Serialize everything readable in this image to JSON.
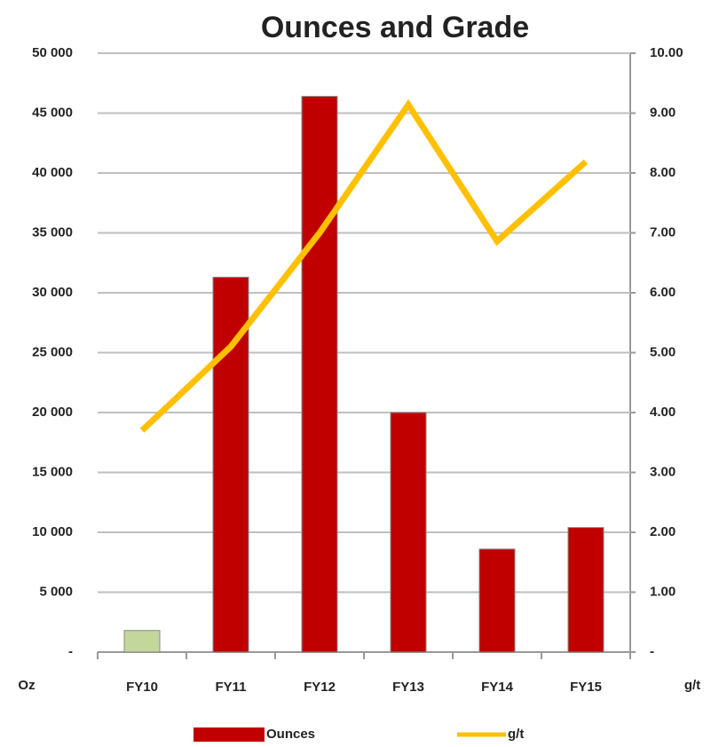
{
  "chart_data": {
    "type": "bar_line",
    "title": "Ounces and Grade",
    "y_label": "Oz",
    "y2_label": "g/t",
    "categories": [
      "FY10",
      "FY11",
      "FY12",
      "FY13",
      "FY14",
      "FY15"
    ],
    "series": [
      {
        "name": "Ounces",
        "type": "bar",
        "color": "#c00000",
        "point_colors": [
          "#c3d69b",
          "#c00000",
          "#c00000",
          "#c00000",
          "#c00000",
          "#c00000"
        ],
        "values": [
          1800,
          31300,
          46400,
          20000,
          8600,
          10400
        ]
      },
      {
        "name": "g/t",
        "type": "line",
        "axis": "y2",
        "color": "#ffc000",
        "values": [
          3.7,
          5.1,
          7.0,
          9.14,
          6.86,
          8.19
        ]
      }
    ],
    "ylim": [
      0,
      50000
    ],
    "yticks": [
      {
        "value": 0,
        "label": "-"
      },
      {
        "value": 5000,
        "label": "5 000"
      },
      {
        "value": 10000,
        "label": "10 000"
      },
      {
        "value": 15000,
        "label": "15 000"
      },
      {
        "value": 20000,
        "label": "20 000"
      },
      {
        "value": 25000,
        "label": "25 000"
      },
      {
        "value": 30000,
        "label": "30 000"
      },
      {
        "value": 35000,
        "label": "35 000"
      },
      {
        "value": 40000,
        "label": "40 000"
      },
      {
        "value": 45000,
        "label": "45 000"
      },
      {
        "value": 50000,
        "label": "50 000"
      }
    ],
    "y2lim": [
      0,
      10
    ],
    "y2ticks": [
      {
        "value": 0,
        "label": "-"
      },
      {
        "value": 1,
        "label": "1.00"
      },
      {
        "value": 2,
        "label": "2.00"
      },
      {
        "value": 3,
        "label": "3.00"
      },
      {
        "value": 4,
        "label": "4.00"
      },
      {
        "value": 5,
        "label": "5.00"
      },
      {
        "value": 6,
        "label": "6.00"
      },
      {
        "value": 7,
        "label": "7.00"
      },
      {
        "value": 8,
        "label": "8.00"
      },
      {
        "value": 9,
        "label": "9.00"
      },
      {
        "value": 10,
        "label": "10.00"
      }
    ],
    "grid": true
  }
}
